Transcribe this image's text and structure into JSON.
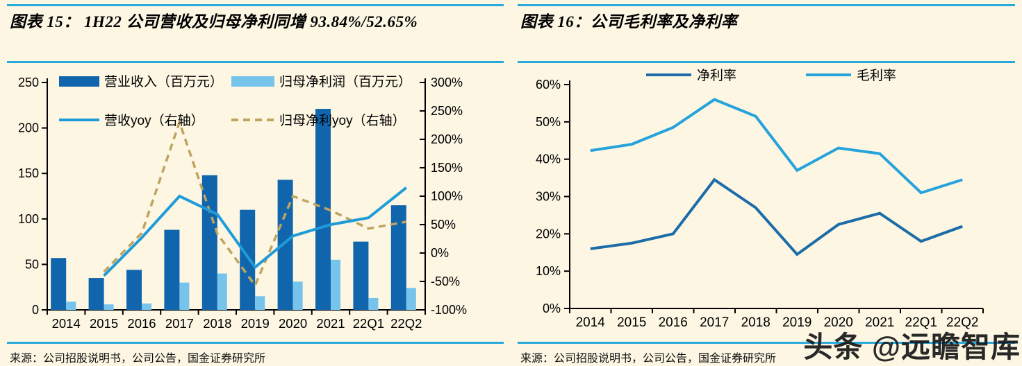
{
  "page": {
    "background": "#FCF6E3",
    "rule_color": "#29A9DC"
  },
  "panels": [
    {
      "title": "图表 15： 1H22 公司营收及归母净利同增 93.84%/52.65%",
      "source": "来源：公司招股说明书，公司公告，国金证券研究所"
    },
    {
      "title": "图表 16：公司毛利率及净利率",
      "source": "来源：公司招股说明书，公司公告，国金证券研究所"
    }
  ],
  "watermark": "头条 @远瞻智库",
  "chart_data": [
    {
      "type": "bar",
      "title": "1H22 公司营收及归母净利同增 93.84%/52.65%",
      "categories": [
        "2014",
        "2015",
        "2016",
        "2017",
        "2018",
        "2019",
        "2020",
        "2021",
        "22Q1",
        "22Q2"
      ],
      "bar_series": [
        {
          "name": "营业收入（百万元）",
          "axis": "left",
          "color": "#1065AD",
          "values": [
            57,
            35,
            44,
            88,
            148,
            110,
            143,
            221,
            75,
            115
          ]
        },
        {
          "name": "归母净利润（百万元）",
          "axis": "left",
          "color": "#76C3EB",
          "values": [
            9,
            6,
            7,
            30,
            40,
            15,
            31,
            55,
            13,
            24
          ]
        }
      ],
      "line_series": [
        {
          "name": "营收yoy（右轴）",
          "axis": "right",
          "style": "solid",
          "color": "#1F9CD8",
          "values": [
            null,
            -40,
            27,
            100,
            68,
            -25,
            30,
            50,
            62,
            115
          ]
        },
        {
          "name": "归母净利yoy（右轴）",
          "axis": "right",
          "style": "dashed",
          "color": "#BFA45F",
          "values": [
            null,
            -33,
            35,
            230,
            34,
            -57,
            100,
            75,
            43,
            55
          ]
        }
      ],
      "left_axis": {
        "min": 0,
        "max": 250,
        "step": 50,
        "suffix": ""
      },
      "right_axis": {
        "min": -100,
        "max": 300,
        "step": 50,
        "suffix": "%"
      },
      "grid": false,
      "legend_position": "top-inside"
    },
    {
      "type": "line",
      "title": "公司毛利率及净利率",
      "categories": [
        "2014",
        "2015",
        "2016",
        "2017",
        "2018",
        "2019",
        "2020",
        "2021",
        "22Q1",
        "22Q2"
      ],
      "series": [
        {
          "name": "净利率",
          "color": "#1B6CA8",
          "values": [
            16,
            17.5,
            20,
            34.5,
            27,
            14.5,
            22.5,
            25.5,
            18,
            22
          ]
        },
        {
          "name": "毛利率",
          "color": "#26A3DC",
          "values": [
            42.3,
            44,
            48.5,
            56,
            51.5,
            37,
            43,
            41.5,
            31,
            34.5
          ]
        }
      ],
      "y_axis": {
        "min": 0,
        "max": 60,
        "step": 10,
        "suffix": "%"
      },
      "grid": false,
      "legend_position": "top"
    }
  ]
}
